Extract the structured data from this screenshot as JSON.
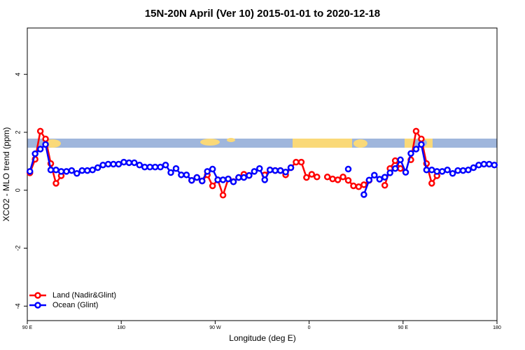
{
  "chart_data": {
    "type": "line",
    "title": "15N-20N April (Ver 10)   2015-01-01 to 2020-12-18",
    "x_label": "Longitude (deg E)",
    "y_label": "XCO2 - MLO trend (ppm)",
    "x": [
      92.5,
      97.5,
      102.5,
      107.5,
      112.5,
      117.5,
      122.5,
      127.5,
      132.5,
      137.5,
      142.5,
      147.5,
      152.5,
      157.5,
      162.5,
      167.5,
      172.5,
      177.5,
      182.5,
      187.5,
      192.5,
      197.5,
      202.5,
      207.5,
      212.5,
      217.5,
      222.5,
      227.5,
      232.5,
      237.5,
      242.5,
      247.5,
      252.5,
      257.5,
      262.5,
      267.5,
      272.5,
      277.5,
      282.5,
      287.5,
      292.5,
      297.5,
      302.5,
      307.5,
      312.5,
      317.5,
      322.5,
      327.5,
      332.5,
      337.5,
      342.5,
      347.5,
      352.5,
      357.5,
      362.5,
      367.5,
      372.5,
      377.5,
      382.5,
      387.5,
      392.5,
      397.5,
      402.5,
      407.5,
      412.5,
      417.5,
      422.5,
      427.5,
      432.5,
      437.5,
      442.5,
      447.5,
      452.5,
      457.5,
      462.5,
      467.5,
      472.5,
      477.5,
      482.5,
      487.5,
      492.5,
      497.5,
      502.5,
      507.5,
      512.5,
      517.5,
      522.5,
      527.5,
      532.5,
      537.5
    ],
    "series": [
      {
        "name": "Land (Nadir&Glint)",
        "color": "#ff0000",
        "values": [
          0.6,
          1.07,
          2.04,
          1.77,
          0.92,
          0.24,
          0.5,
          null,
          null,
          null,
          null,
          null,
          null,
          null,
          null,
          null,
          null,
          null,
          null,
          null,
          null,
          null,
          null,
          null,
          null,
          null,
          null,
          null,
          null,
          null,
          null,
          0.34,
          0.44,
          0.32,
          0.53,
          0.15,
          0.36,
          -0.17,
          0.39,
          0.3,
          0.44,
          0.55,
          0.51,
          null,
          null,
          0.53,
          0.7,
          0.68,
          0.68,
          0.53,
          0.78,
          0.97,
          0.97,
          0.44,
          0.55,
          0.46,
          null,
          0.46,
          0.39,
          0.36,
          0.46,
          0.34,
          0.15,
          0.12,
          0.19,
          0.34,
          null,
          null,
          0.17,
          0.75,
          1.02,
          0.75,
          null,
          1.05,
          2.04,
          1.77,
          0.92,
          0.24,
          0.5,
          null,
          null,
          null,
          null,
          null,
          null,
          null,
          null,
          null,
          null,
          null
        ]
      },
      {
        "name": "Ocean (Glint)",
        "color": "#0000ff",
        "values": [
          0.65,
          1.26,
          1.42,
          1.58,
          0.7,
          0.7,
          0.65,
          0.65,
          0.68,
          0.58,
          0.68,
          0.68,
          0.7,
          0.78,
          0.87,
          0.9,
          0.9,
          0.9,
          0.97,
          0.95,
          0.95,
          0.87,
          0.8,
          0.8,
          0.8,
          0.8,
          0.87,
          0.61,
          0.75,
          0.53,
          0.53,
          0.34,
          0.44,
          0.32,
          0.65,
          0.73,
          0.36,
          0.36,
          0.39,
          0.29,
          0.44,
          0.44,
          0.51,
          0.65,
          0.75,
          0.36,
          0.7,
          0.68,
          0.68,
          0.63,
          0.78,
          null,
          null,
          null,
          null,
          null,
          null,
          null,
          null,
          null,
          null,
          0.73,
          null,
          null,
          -0.15,
          0.35,
          0.52,
          0.38,
          0.45,
          0.6,
          0.75,
          1.05,
          0.62,
          1.27,
          1.42,
          1.58,
          0.7,
          0.7,
          0.65,
          0.65,
          0.7,
          0.58,
          0.68,
          0.68,
          0.7,
          0.78,
          0.87,
          0.9,
          0.9,
          0.87
        ]
      }
    ],
    "xlim": [
      90,
      540
    ],
    "xticks": [
      {
        "value": 90,
        "label": "90 E"
      },
      180,
      {
        "value": 270,
        "label": "90 W"
      },
      {
        "value": 360,
        "label": "0"
      },
      {
        "value": 450,
        "label": "90 E"
      },
      {
        "value": 540,
        "label": "180"
      }
    ],
    "ylim": [
      -4.5,
      5.6
    ],
    "yticks": [
      -4,
      -2,
      0,
      2,
      4
    ],
    "legend": "bottom-left"
  }
}
